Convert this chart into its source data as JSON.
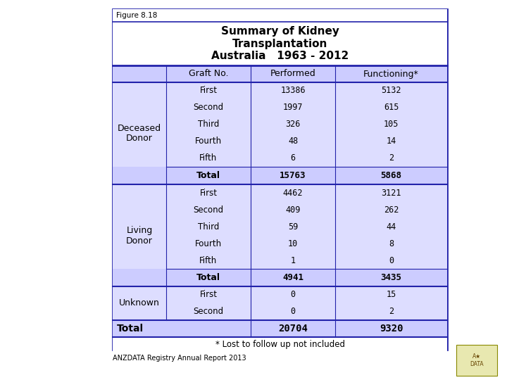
{
  "figure_label": "Figure 8.18",
  "title_lines": [
    "Summary of Kidney",
    "Transplantation",
    "Australia   1963 - 2012"
  ],
  "header": [
    "Graft No.",
    "Performed",
    "Functioning*"
  ],
  "sections": [
    {
      "group_label": "Deceased\nDonor",
      "rows": [
        {
          "graft": "First",
          "performed": "13386",
          "functioning": "5132"
        },
        {
          "graft": "Second",
          "performed": "1997",
          "functioning": "615"
        },
        {
          "graft": "Third",
          "performed": "326",
          "functioning": "105"
        },
        {
          "graft": "Fourth",
          "performed": "48",
          "functioning": "14"
        },
        {
          "graft": "Fifth",
          "performed": "6",
          "functioning": "2"
        }
      ],
      "total_performed": "15763",
      "total_functioning": "5868"
    },
    {
      "group_label": "Living\nDonor",
      "rows": [
        {
          "graft": "First",
          "performed": "4462",
          "functioning": "3121"
        },
        {
          "graft": "Second",
          "performed": "409",
          "functioning": "262"
        },
        {
          "graft": "Third",
          "performed": "59",
          "functioning": "44"
        },
        {
          "graft": "Fourth",
          "performed": "10",
          "functioning": "8"
        },
        {
          "graft": "Fifth",
          "performed": "1",
          "functioning": "0"
        }
      ],
      "total_performed": "4941",
      "total_functioning": "3435"
    },
    {
      "group_label": "Unknown",
      "rows": [
        {
          "graft": "First",
          "performed": "0",
          "functioning": "15"
        },
        {
          "graft": "Second",
          "performed": "0",
          "functioning": "2"
        }
      ],
      "total_performed": null,
      "total_functioning": null
    }
  ],
  "grand_total_performed": "20704",
  "grand_total_functioning": "9320",
  "footnote": "* Lost to follow up not included",
  "footer_text": "ANZDATA Registry Annual Report 2013",
  "header_bg": "#ccccff",
  "group_bg": "#ddddff",
  "total_row_bg": "#ccccff",
  "grand_total_bg": "#ccccff",
  "border_color": "#2222aa",
  "unknown_border_color": "#2222cc"
}
